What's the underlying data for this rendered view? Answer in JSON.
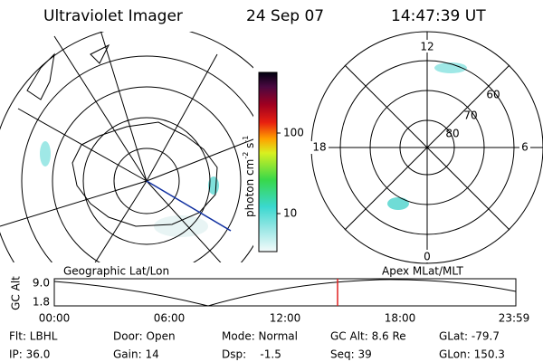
{
  "header": {
    "title": "Ultraviolet Imager",
    "date": "24 Sep 07",
    "time": "14:47:39 UT"
  },
  "colorbar": {
    "label": "photon cm",
    "exp1": "-2",
    "unit2": " s",
    "exp2": "-1",
    "ticks": [
      "100",
      "10"
    ]
  },
  "left_panel": {
    "caption": "Geographic Lat/Lon"
  },
  "right_panel": {
    "caption": "Apex MLat/MLT",
    "hour_labels": [
      "12",
      "6",
      "0",
      "18"
    ],
    "lat_labels": [
      "60",
      "70",
      "80"
    ]
  },
  "altitude": {
    "axis_label": "GC Alt",
    "yticks": [
      "9.0",
      "1.8"
    ],
    "xticks": [
      "00:00",
      "06:00",
      "12:00",
      "18:00",
      "23:59"
    ]
  },
  "info": {
    "rows": [
      [
        "Flt: LBHL",
        "Door: Open",
        "Mode: Normal",
        "GC Alt: 8.6 Re",
        "GLat: -79.7"
      ],
      [
        "IP: 36.0",
        "Gain: 14",
        "Dsp:    -1.5",
        "Seq: 39",
        "GLon: 150.3"
      ]
    ]
  }
}
